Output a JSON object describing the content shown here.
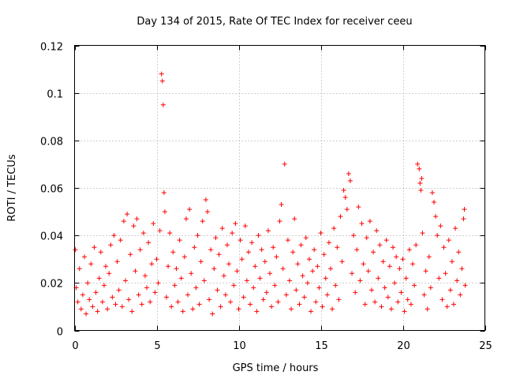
{
  "chart_data": {
    "type": "scatter",
    "title": "Day 134 of 2015, Rate Of TEC Index for receiver ceeu",
    "xlabel": "GPS time / hours",
    "ylabel": "ROTI / TECUs",
    "xlim": [
      0,
      25
    ],
    "ylim": [
      0,
      0.12
    ],
    "xticks": [
      "0",
      "5",
      "10",
      "15",
      "20",
      "25"
    ],
    "yticks": [
      "0",
      "0.02",
      "0.04",
      "0.06",
      "0.08",
      "0.1",
      "0.12"
    ],
    "grid": true,
    "marker": "plus",
    "color": "#ff0000",
    "series": [
      {
        "name": "ROTI",
        "points": [
          [
            0.05,
            0.034
          ],
          [
            0.1,
            0.018
          ],
          [
            0.2,
            0.012
          ],
          [
            0.3,
            0.026
          ],
          [
            0.4,
            0.009
          ],
          [
            0.5,
            0.015
          ],
          [
            0.6,
            0.031
          ],
          [
            0.7,
            0.007
          ],
          [
            0.8,
            0.02
          ],
          [
            0.9,
            0.013
          ],
          [
            1.0,
            0.028
          ],
          [
            1.1,
            0.01
          ],
          [
            1.2,
            0.035
          ],
          [
            1.3,
            0.016
          ],
          [
            1.4,
            0.008
          ],
          [
            1.5,
            0.022
          ],
          [
            1.6,
            0.033
          ],
          [
            1.7,
            0.012
          ],
          [
            1.8,
            0.019
          ],
          [
            1.9,
            0.027
          ],
          [
            2.0,
            0.009
          ],
          [
            2.1,
            0.024
          ],
          [
            2.2,
            0.036
          ],
          [
            2.3,
            0.014
          ],
          [
            2.4,
            0.04
          ],
          [
            2.5,
            0.011
          ],
          [
            2.6,
            0.029
          ],
          [
            2.7,
            0.017
          ],
          [
            2.8,
            0.038
          ],
          [
            2.9,
            0.01
          ],
          [
            3.0,
            0.046
          ],
          [
            3.1,
            0.021
          ],
          [
            3.2,
            0.049
          ],
          [
            3.3,
            0.013
          ],
          [
            3.4,
            0.032
          ],
          [
            3.5,
            0.008
          ],
          [
            3.6,
            0.044
          ],
          [
            3.7,
            0.025
          ],
          [
            3.8,
            0.047
          ],
          [
            3.9,
            0.015
          ],
          [
            4.0,
            0.034
          ],
          [
            4.1,
            0.011
          ],
          [
            4.2,
            0.041
          ],
          [
            4.3,
            0.023
          ],
          [
            4.4,
            0.018
          ],
          [
            4.5,
            0.037
          ],
          [
            4.6,
            0.012
          ],
          [
            4.7,
            0.028
          ],
          [
            4.8,
            0.045
          ],
          [
            4.9,
            0.016
          ],
          [
            5.0,
            0.03
          ],
          [
            5.1,
            0.02
          ],
          [
            5.2,
            0.042
          ],
          [
            5.3,
            0.108
          ],
          [
            5.35,
            0.105
          ],
          [
            5.4,
            0.095
          ],
          [
            5.45,
            0.058
          ],
          [
            5.5,
            0.05
          ],
          [
            5.6,
            0.014
          ],
          [
            5.7,
            0.027
          ],
          [
            5.8,
            0.041
          ],
          [
            5.9,
            0.01
          ],
          [
            6.0,
            0.033
          ],
          [
            6.1,
            0.019
          ],
          [
            6.2,
            0.026
          ],
          [
            6.3,
            0.012
          ],
          [
            6.4,
            0.038
          ],
          [
            6.5,
            0.022
          ],
          [
            6.6,
            0.008
          ],
          [
            6.7,
            0.031
          ],
          [
            6.8,
            0.047
          ],
          [
            6.9,
            0.015
          ],
          [
            7.0,
            0.051
          ],
          [
            7.1,
            0.024
          ],
          [
            7.2,
            0.009
          ],
          [
            7.3,
            0.035
          ],
          [
            7.4,
            0.018
          ],
          [
            7.5,
            0.04
          ],
          [
            7.6,
            0.011
          ],
          [
            7.7,
            0.029
          ],
          [
            7.8,
            0.046
          ],
          [
            7.9,
            0.021
          ],
          [
            8.0,
            0.055
          ],
          [
            8.1,
            0.05
          ],
          [
            8.2,
            0.013
          ],
          [
            8.3,
            0.034
          ],
          [
            8.4,
            0.007
          ],
          [
            8.5,
            0.026
          ],
          [
            8.6,
            0.039
          ],
          [
            8.7,
            0.017
          ],
          [
            8.8,
            0.032
          ],
          [
            8.9,
            0.01
          ],
          [
            9.0,
            0.043
          ],
          [
            9.1,
            0.023
          ],
          [
            9.2,
            0.015
          ],
          [
            9.3,
            0.036
          ],
          [
            9.4,
            0.028
          ],
          [
            9.5,
            0.012
          ],
          [
            9.6,
            0.041
          ],
          [
            9.7,
            0.019
          ],
          [
            9.8,
            0.045
          ],
          [
            9.9,
            0.025
          ],
          [
            10.0,
            0.009
          ],
          [
            10.1,
            0.038
          ],
          [
            10.2,
            0.03
          ],
          [
            10.3,
            0.014
          ],
          [
            10.4,
            0.044
          ],
          [
            10.5,
            0.021
          ],
          [
            10.6,
            0.033
          ],
          [
            10.7,
            0.011
          ],
          [
            10.8,
            0.037
          ],
          [
            10.9,
            0.018
          ],
          [
            11.0,
            0.027
          ],
          [
            11.1,
            0.008
          ],
          [
            11.2,
            0.04
          ],
          [
            11.3,
            0.022
          ],
          [
            11.4,
            0.034
          ],
          [
            11.5,
            0.013
          ],
          [
            11.6,
            0.029
          ],
          [
            11.7,
            0.016
          ],
          [
            11.8,
            0.042
          ],
          [
            11.9,
            0.024
          ],
          [
            12.0,
            0.01
          ],
          [
            12.1,
            0.035
          ],
          [
            12.2,
            0.019
          ],
          [
            12.3,
            0.031
          ],
          [
            12.4,
            0.012
          ],
          [
            12.5,
            0.046
          ],
          [
            12.6,
            0.053
          ],
          [
            12.7,
            0.026
          ],
          [
            12.8,
            0.07
          ],
          [
            12.9,
            0.015
          ],
          [
            13.0,
            0.038
          ],
          [
            13.1,
            0.021
          ],
          [
            13.2,
            0.009
          ],
          [
            13.3,
            0.033
          ],
          [
            13.4,
            0.047
          ],
          [
            13.5,
            0.017
          ],
          [
            13.6,
            0.028
          ],
          [
            13.7,
            0.011
          ],
          [
            13.8,
            0.036
          ],
          [
            13.9,
            0.023
          ],
          [
            14.0,
            0.014
          ],
          [
            14.1,
            0.039
          ],
          [
            14.2,
            0.02
          ],
          [
            14.3,
            0.03
          ],
          [
            14.4,
            0.008
          ],
          [
            14.5,
            0.025
          ],
          [
            14.6,
            0.034
          ],
          [
            14.7,
            0.012
          ],
          [
            14.8,
            0.027
          ],
          [
            14.9,
            0.018
          ],
          [
            15.0,
            0.041
          ],
          [
            15.1,
            0.01
          ],
          [
            15.2,
            0.032
          ],
          [
            15.3,
            0.022
          ],
          [
            15.4,
            0.015
          ],
          [
            15.5,
            0.037
          ],
          [
            15.6,
            0.026
          ],
          [
            15.7,
            0.009
          ],
          [
            15.8,
            0.043
          ],
          [
            15.9,
            0.019
          ],
          [
            16.0,
            0.035
          ],
          [
            16.1,
            0.013
          ],
          [
            16.2,
            0.048
          ],
          [
            16.3,
            0.029
          ],
          [
            16.4,
            0.059
          ],
          [
            16.5,
            0.056
          ],
          [
            16.6,
            0.051
          ],
          [
            16.7,
            0.066
          ],
          [
            16.8,
            0.063
          ],
          [
            16.9,
            0.024
          ],
          [
            17.0,
            0.04
          ],
          [
            17.1,
            0.016
          ],
          [
            17.2,
            0.034
          ],
          [
            17.3,
            0.052
          ],
          [
            17.4,
            0.021
          ],
          [
            17.5,
            0.045
          ],
          [
            17.6,
            0.028
          ],
          [
            17.7,
            0.011
          ],
          [
            17.8,
            0.039
          ],
          [
            17.9,
            0.025
          ],
          [
            18.0,
            0.046
          ],
          [
            18.1,
            0.017
          ],
          [
            18.2,
            0.033
          ],
          [
            18.3,
            0.012
          ],
          [
            18.4,
            0.042
          ],
          [
            18.5,
            0.022
          ],
          [
            18.6,
            0.036
          ],
          [
            18.7,
            0.01
          ],
          [
            18.8,
            0.029
          ],
          [
            18.9,
            0.018
          ],
          [
            19.0,
            0.038
          ],
          [
            19.1,
            0.014
          ],
          [
            19.2,
            0.027
          ],
          [
            19.3,
            0.009
          ],
          [
            19.4,
            0.035
          ],
          [
            19.5,
            0.02
          ],
          [
            19.6,
            0.031
          ],
          [
            19.7,
            0.012
          ],
          [
            19.8,
            0.026
          ],
          [
            19.9,
            0.016
          ],
          [
            20.0,
            0.03
          ],
          [
            20.1,
            0.008
          ],
          [
            20.2,
            0.022
          ],
          [
            20.3,
            0.013
          ],
          [
            20.4,
            0.034
          ],
          [
            20.5,
            0.011
          ],
          [
            20.6,
            0.028
          ],
          [
            20.7,
            0.019
          ],
          [
            20.8,
            0.036
          ],
          [
            20.9,
            0.07
          ],
          [
            21.0,
            0.068
          ],
          [
            21.05,
            0.062
          ],
          [
            21.1,
            0.059
          ],
          [
            21.15,
            0.064
          ],
          [
            21.2,
            0.041
          ],
          [
            21.3,
            0.015
          ],
          [
            21.4,
            0.025
          ],
          [
            21.5,
            0.009
          ],
          [
            21.6,
            0.031
          ],
          [
            21.7,
            0.018
          ],
          [
            21.8,
            0.058
          ],
          [
            21.9,
            0.054
          ],
          [
            22.0,
            0.048
          ],
          [
            22.1,
            0.04
          ],
          [
            22.2,
            0.022
          ],
          [
            22.3,
            0.044
          ],
          [
            22.4,
            0.013
          ],
          [
            22.5,
            0.035
          ],
          [
            22.6,
            0.024
          ],
          [
            22.7,
            0.01
          ],
          [
            22.8,
            0.038
          ],
          [
            22.9,
            0.017
          ],
          [
            23.0,
            0.029
          ],
          [
            23.1,
            0.011
          ],
          [
            23.2,
            0.043
          ],
          [
            23.3,
            0.021
          ],
          [
            23.4,
            0.033
          ],
          [
            23.5,
            0.015
          ],
          [
            23.6,
            0.026
          ],
          [
            23.7,
            0.047
          ],
          [
            23.75,
            0.051
          ],
          [
            23.8,
            0.019
          ]
        ]
      }
    ]
  }
}
